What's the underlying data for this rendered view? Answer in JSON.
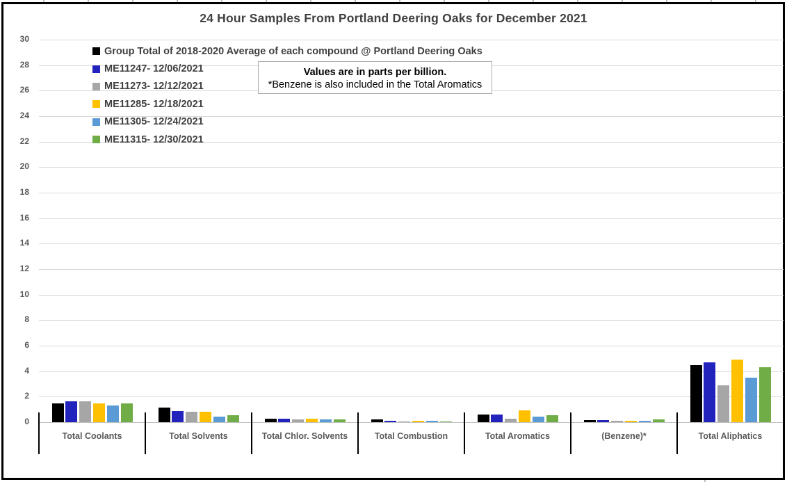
{
  "chart_data": {
    "type": "bar",
    "title": "24 Hour Samples From Portland Deering Oaks for December 2021",
    "units_note": {
      "line1": "Values are in parts per billion.",
      "line2": "*Benzene is also included in the Total Aromatics"
    },
    "categories": [
      "Total Coolants",
      "Total Solvents",
      "Total Chlor. Solvents",
      "Total Combustion",
      "Total Aromatics",
      "(Benzene)*",
      "Total Aliphatics"
    ],
    "series": [
      {
        "name": "Group Total of 2018-2020 Average of each compound @ Portland Deering Oaks",
        "color": "#000000",
        "values": [
          1.5,
          1.15,
          0.3,
          0.2,
          0.6,
          0.18,
          4.45
        ]
      },
      {
        "name": "ME11247- 12/06/2021",
        "color": "#2222bd",
        "values": [
          1.65,
          0.9,
          0.25,
          0.12,
          0.62,
          0.18,
          4.7
        ]
      },
      {
        "name": "ME11273- 12/12/2021",
        "color": "#a6a6a6",
        "values": [
          1.65,
          0.8,
          0.2,
          0.02,
          0.3,
          0.1,
          2.9
        ]
      },
      {
        "name": "ME11285- 12/18/2021",
        "color": "#ffc000",
        "values": [
          1.45,
          0.8,
          0.25,
          0.1,
          0.95,
          0.12,
          4.9
        ]
      },
      {
        "name": "ME11305- 12/24/2021",
        "color": "#5b9bd5",
        "values": [
          1.3,
          0.45,
          0.2,
          0.1,
          0.45,
          0.12,
          3.5
        ]
      },
      {
        "name": "ME11315- 12/30/2021",
        "color": "#70ad47",
        "values": [
          1.45,
          0.55,
          0.2,
          0.08,
          0.55,
          0.2,
          4.3
        ]
      }
    ],
    "ylim": [
      0,
      30
    ],
    "y_tick_step": 2,
    "grid": true,
    "legend_position": "top-left",
    "xlabel": "",
    "ylabel": ""
  }
}
